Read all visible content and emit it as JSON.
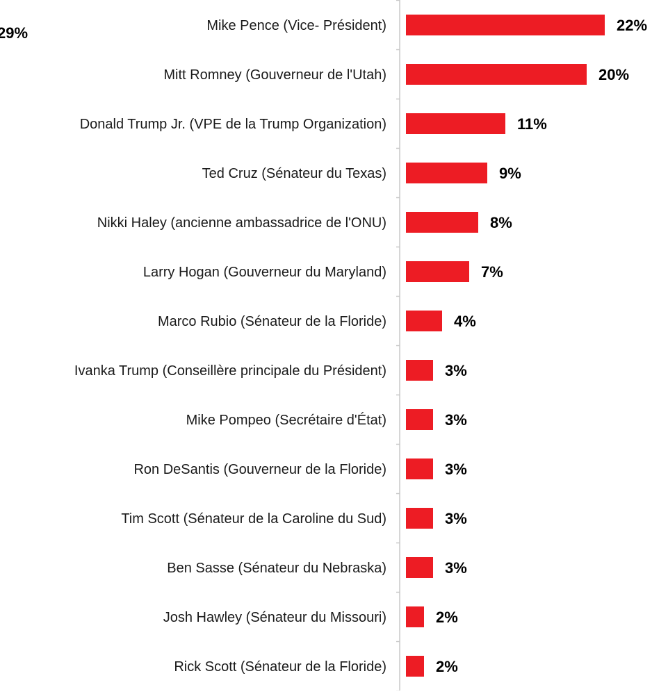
{
  "clipped_label": "29%",
  "colors": {
    "bar": "#ed1c24",
    "axis": "#c8c8c8",
    "text": "#1a1a1a"
  },
  "chart_data": {
    "type": "bar",
    "orientation": "horizontal",
    "categories": [
      "Mike Pence (Vice- Président)",
      "Mitt Romney (Gouverneur de l'Utah)",
      "Donald Trump Jr. (VPE de la Trump Organization)",
      "Ted Cruz (Sénateur du Texas)",
      "Nikki Haley (ancienne ambassadrice de l'ONU)",
      "Larry Hogan (Gouverneur du  Maryland)",
      "Marco Rubio (Sénateur de la Floride)",
      "Ivanka Trump (Conseillère principale du Président)",
      "Mike Pompeo (Secrétaire d'État)",
      "Ron DeSantis (Gouverneur de la Floride)",
      "Tim Scott (Sénateur de la Caroline du Sud)",
      "Ben Sasse (Sénateur du Nebraska)",
      "Josh Hawley (Sénateur du Missouri)",
      "Rick Scott (Sénateur de la Floride)"
    ],
    "values": [
      22,
      20,
      11,
      9,
      8,
      7,
      4,
      3,
      3,
      3,
      3,
      3,
      2,
      2
    ],
    "labels": [
      "22%",
      "20%",
      "11%",
      "9%",
      "8%",
      "7%",
      "4%",
      "3%",
      "3%",
      "3%",
      "3%",
      "3%",
      "2%",
      "2%"
    ],
    "xlim": [
      0,
      22
    ],
    "grid": false,
    "legend": "none"
  }
}
